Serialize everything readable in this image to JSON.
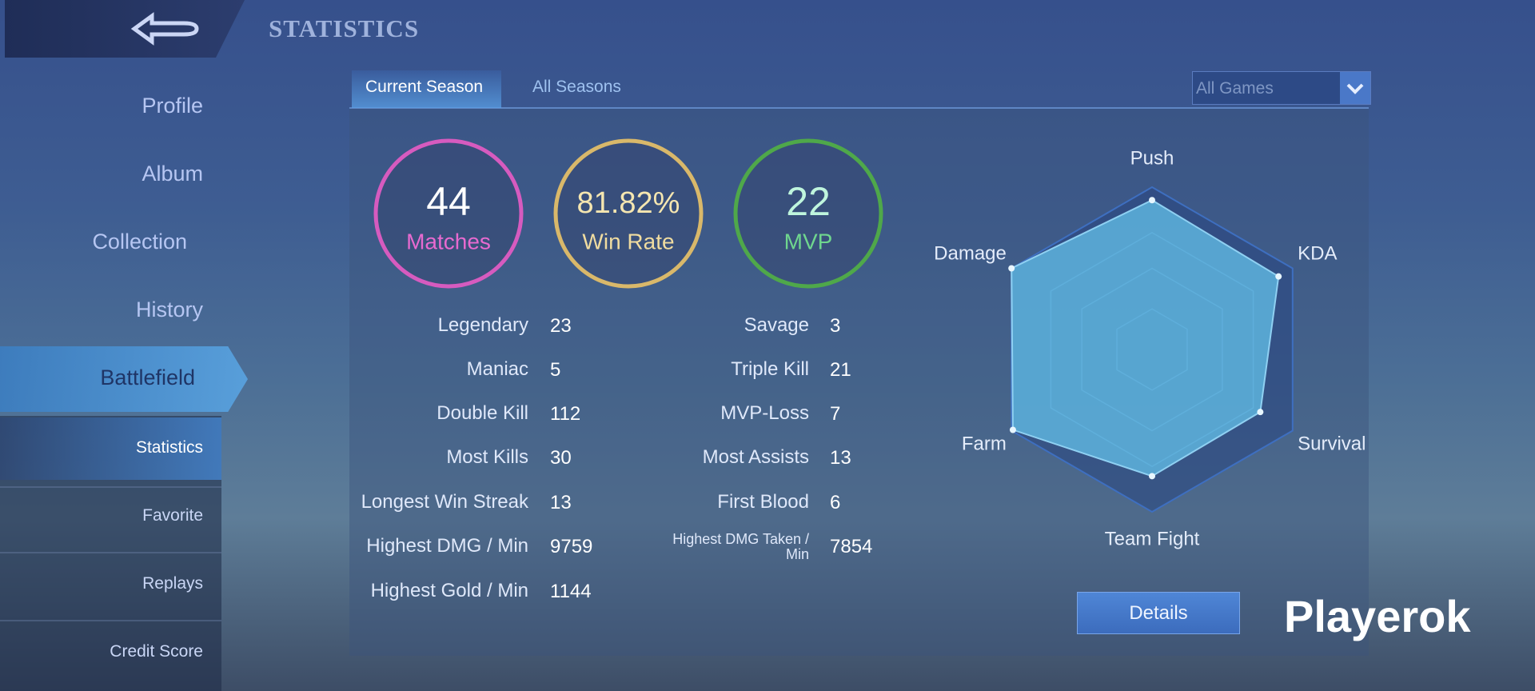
{
  "header": {
    "title": "STATISTICS"
  },
  "sidebar": {
    "items": [
      "Profile",
      "Album",
      "Collection",
      "History",
      "Battlefield"
    ],
    "subitems": [
      "Statistics",
      "Favorite",
      "Replays",
      "Credit Score"
    ]
  },
  "tabs": [
    "Current Season",
    "All Seasons"
  ],
  "filter": "All Games",
  "summary": [
    {
      "value": "44",
      "label": "Matches",
      "color": "#d65bbf"
    },
    {
      "value": "81.82%",
      "label": "Win Rate",
      "color": "#d9b86a"
    },
    {
      "value": "22",
      "label": "MVP",
      "color": "#4fa84a"
    }
  ],
  "stats": {
    "left": [
      {
        "label": "Legendary",
        "value": 23
      },
      {
        "label": "Maniac",
        "value": 5
      },
      {
        "label": "Double Kill",
        "value": 112
      },
      {
        "label": "Most Kills",
        "value": 30
      },
      {
        "label": "Longest Win Streak",
        "value": 13
      },
      {
        "label": "Highest DMG / Min",
        "value": 9759
      },
      {
        "label": "Highest Gold / Min",
        "value": 1144
      }
    ],
    "right": [
      {
        "label": "Savage",
        "value": 3
      },
      {
        "label": "Triple Kill",
        "value": 21
      },
      {
        "label": "MVP-Loss",
        "value": 7
      },
      {
        "label": "Most Assists",
        "value": 13
      },
      {
        "label": "First Blood",
        "value": 6
      },
      {
        "label": "Highest DMG Taken / Min",
        "value": 7854
      }
    ]
  },
  "chart_data": {
    "type": "radar",
    "categories": [
      "Push",
      "KDA",
      "Survival",
      "Team Fight",
      "Farm",
      "Damage"
    ],
    "values": [
      92,
      90,
      77,
      78,
      99,
      100
    ],
    "ylim": [
      0,
      100
    ],
    "color": "#62bde6"
  },
  "button": "Details",
  "watermark": "Playerok"
}
